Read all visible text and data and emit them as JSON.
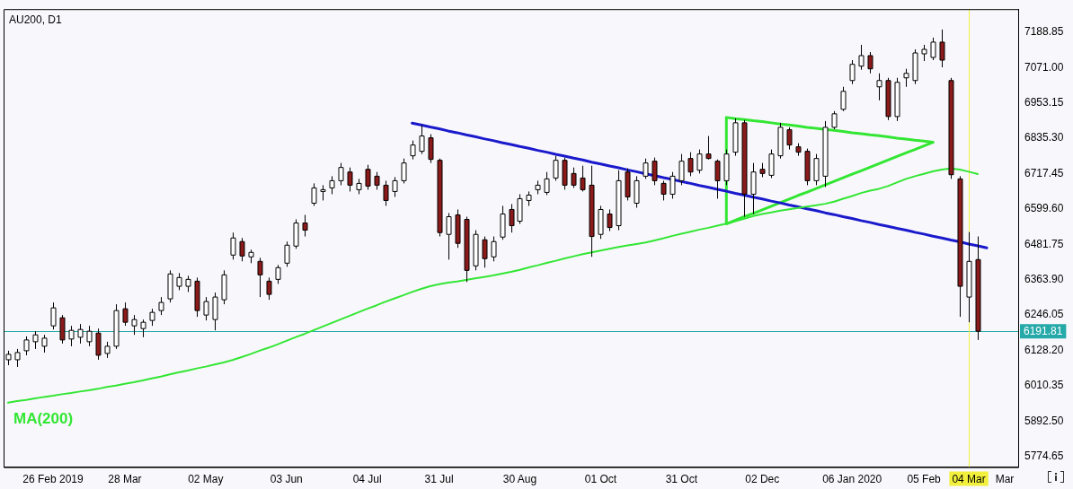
{
  "chart_data": {
    "type": "candlestick",
    "title": "AU200, D1",
    "categories": [
      null,
      null,
      null,
      null,
      null,
      "26 Feb 2019",
      null,
      null,
      null,
      null,
      null,
      null,
      null,
      "28 Mar",
      null,
      null,
      null,
      null,
      null,
      null,
      null,
      null,
      "02 May",
      null,
      null,
      null,
      null,
      null,
      null,
      null,
      null,
      "03 Jun",
      null,
      null,
      null,
      null,
      null,
      null,
      null,
      null,
      "04 Jul",
      null,
      null,
      null,
      null,
      null,
      null,
      null,
      "31 Jul",
      null,
      null,
      null,
      null,
      null,
      null,
      null,
      null,
      "30 Aug",
      null,
      null,
      null,
      null,
      null,
      null,
      null,
      null,
      "01 Oct",
      null,
      null,
      null,
      null,
      null,
      null,
      null,
      null,
      "31 Oct",
      null,
      null,
      null,
      null,
      null,
      null,
      null,
      null,
      "02 Dec",
      null,
      null,
      null,
      null,
      null,
      null,
      null,
      null,
      null,
      "06 Jan 2020",
      null,
      null,
      null,
      null,
      null,
      null,
      null,
      "05 Feb",
      null,
      null,
      null,
      null,
      "04 Mar",
      null,
      null,
      null,
      "Mar",
      null
    ],
    "ohlc": [
      [
        6097,
        6127,
        6079,
        6115
      ],
      [
        6097,
        6133,
        6073,
        6121
      ],
      [
        6127,
        6175,
        6112,
        6163
      ],
      [
        6157,
        6192,
        6133,
        6180
      ],
      [
        6142,
        6180,
        6121,
        6169
      ],
      [
        6210,
        6288,
        6198,
        6270
      ],
      [
        6237,
        6246,
        6151,
        6163
      ],
      [
        6166,
        6210,
        6142,
        6195
      ],
      [
        6172,
        6216,
        6151,
        6198
      ],
      [
        6157,
        6210,
        6142,
        6192
      ],
      [
        6186,
        6201,
        6097,
        6112
      ],
      [
        6118,
        6157,
        6103,
        6142
      ],
      [
        6142,
        6282,
        6133,
        6261
      ],
      [
        6267,
        6288,
        6210,
        6222
      ],
      [
        6210,
        6246,
        6180,
        6231
      ],
      [
        6201,
        6231,
        6172,
        6222
      ],
      [
        6228,
        6267,
        6210,
        6255
      ],
      [
        6261,
        6306,
        6246,
        6288
      ],
      [
        6300,
        6395,
        6288,
        6383
      ],
      [
        6342,
        6386,
        6329,
        6371
      ],
      [
        6342,
        6377,
        6323,
        6365
      ],
      [
        6359,
        6371,
        6240,
        6261
      ],
      [
        6246,
        6306,
        6228,
        6291
      ],
      [
        6231,
        6321,
        6195,
        6306
      ],
      [
        6297,
        6395,
        6282,
        6380
      ],
      [
        6446,
        6521,
        6431,
        6503
      ],
      [
        6491,
        6503,
        6425,
        6443
      ],
      [
        6440,
        6464,
        6419,
        6455
      ],
      [
        6425,
        6437,
        6306,
        6380
      ],
      [
        6359,
        6371,
        6297,
        6315
      ],
      [
        6365,
        6413,
        6350,
        6404
      ],
      [
        6419,
        6491,
        6407,
        6479
      ],
      [
        6476,
        6565,
        6467,
        6553
      ],
      [
        6553,
        6580,
        6508,
        6529
      ],
      [
        6619,
        6685,
        6610,
        6670
      ],
      [
        6658,
        6679,
        6628,
        6664
      ],
      [
        6670,
        6709,
        6649,
        6694
      ],
      [
        6694,
        6753,
        6679,
        6738
      ],
      [
        6723,
        6738,
        6658,
        6679
      ],
      [
        6664,
        6700,
        6649,
        6685
      ],
      [
        6732,
        6747,
        6664,
        6676
      ],
      [
        6709,
        6723,
        6664,
        6679
      ],
      [
        6679,
        6694,
        6610,
        6628
      ],
      [
        6658,
        6706,
        6640,
        6694
      ],
      [
        6694,
        6768,
        6685,
        6753
      ],
      [
        6777,
        6828,
        6765,
        6813
      ],
      [
        6792,
        6879,
        6783,
        6843
      ],
      [
        6837,
        6849,
        6753,
        6765
      ],
      [
        6762,
        6768,
        6508,
        6521
      ],
      [
        6515,
        6586,
        6431,
        6574
      ],
      [
        6580,
        6598,
        6470,
        6485
      ],
      [
        6565,
        6574,
        6356,
        6395
      ],
      [
        6410,
        6529,
        6395,
        6515
      ],
      [
        6497,
        6508,
        6404,
        6434
      ],
      [
        6440,
        6508,
        6425,
        6491
      ],
      [
        6506,
        6610,
        6497,
        6583
      ],
      [
        6598,
        6616,
        6521,
        6544
      ],
      [
        6559,
        6649,
        6550,
        6634
      ],
      [
        6628,
        6658,
        6610,
        6646
      ],
      [
        6664,
        6694,
        6649,
        6679
      ],
      [
        6655,
        6723,
        6646,
        6700
      ],
      [
        6703,
        6777,
        6694,
        6762
      ],
      [
        6762,
        6771,
        6664,
        6679
      ],
      [
        6718,
        6738,
        6670,
        6679
      ],
      [
        6703,
        6744,
        6658,
        6664
      ],
      [
        6679,
        6744,
        6440,
        6508
      ],
      [
        6515,
        6610,
        6500,
        6598
      ],
      [
        6583,
        6598,
        6526,
        6538
      ],
      [
        6544,
        6729,
        6529,
        6694
      ],
      [
        6723,
        6735,
        6628,
        6640
      ],
      [
        6619,
        6709,
        6604,
        6694
      ],
      [
        6709,
        6768,
        6700,
        6753
      ],
      [
        6759,
        6771,
        6679,
        6694
      ],
      [
        6685,
        6694,
        6628,
        6649
      ],
      [
        6649,
        6723,
        6634,
        6709
      ],
      [
        6694,
        6783,
        6679,
        6759
      ],
      [
        6768,
        6789,
        6709,
        6723
      ],
      [
        6729,
        6798,
        6718,
        6783
      ],
      [
        6783,
        6843,
        6765,
        6768
      ],
      [
        6759,
        6765,
        6634,
        6694
      ],
      [
        6694,
        6798,
        6679,
        6783
      ],
      [
        6789,
        6902,
        6777,
        6887
      ],
      [
        6887,
        6896,
        6574,
        6649
      ],
      [
        6649,
        6753,
        6583,
        6723
      ],
      [
        6732,
        6753,
        6706,
        6718
      ],
      [
        6712,
        6798,
        6703,
        6783
      ],
      [
        6777,
        6887,
        6768,
        6872
      ],
      [
        6864,
        6872,
        6798,
        6813
      ],
      [
        6807,
        6819,
        6777,
        6789
      ],
      [
        6792,
        6801,
        6679,
        6694
      ],
      [
        6694,
        6783,
        6679,
        6768
      ],
      [
        6709,
        6893,
        6673,
        6872
      ],
      [
        6872,
        6926,
        6866,
        6917
      ],
      [
        6932,
        7007,
        6926,
        6992
      ],
      [
        7028,
        7096,
        7016,
        7082
      ],
      [
        7076,
        7147,
        7064,
        7111
      ],
      [
        7111,
        7123,
        7052,
        7067
      ],
      [
        7007,
        7052,
        6962,
        7028
      ],
      [
        7028,
        7037,
        6896,
        6908
      ],
      [
        6908,
        7037,
        6893,
        7022
      ],
      [
        7037,
        7067,
        7007,
        7052
      ],
      [
        7028,
        7132,
        7016,
        7120
      ],
      [
        7117,
        7147,
        7093,
        7132
      ],
      [
        7105,
        7171,
        7096,
        7156
      ],
      [
        7156,
        7198,
        7072,
        7096
      ],
      [
        7028,
        7037,
        6700,
        6714
      ],
      [
        6700,
        6709,
        6240,
        6342
      ],
      [
        6306,
        6523,
        6222,
        6425
      ],
      [
        6431,
        6508,
        6163,
        6192
      ],
      null,
      null,
      null,
      null
    ],
    "ylim": [
      5739,
      7266
    ],
    "yticks": [
      5774.65,
      {
        "value": 5892.5,
        "label": "5892.50"
      },
      6010.35,
      {
        "value": 6128.2,
        "label": "6128.20"
      },
      6246.05,
      {
        "value": 6363.9,
        "label": "6363.90"
      },
      6481.75,
      {
        "value": 6599.6,
        "label": "6599.60"
      },
      6717.45,
      {
        "value": 6835.3,
        "label": "6835.30"
      },
      6953.15,
      {
        "value": 7071,
        "label": "7071.00"
      },
      7188.85
    ],
    "series": [
      {
        "type": "line",
        "name": "MA(200)",
        "color": "#33e633",
        "values": [
          5954,
          5959,
          5963,
          5968,
          5973,
          5977,
          5982,
          5986,
          5991,
          5995,
          6000,
          6006,
          6011,
          6017,
          6022,
          6028,
          6035,
          6041,
          6048,
          6055,
          6061,
          6068,
          6074,
          6081,
          6088,
          6096,
          6106,
          6116,
          6127,
          6137,
          6148,
          6160,
          6172,
          6183,
          6195,
          6207,
          6219,
          6231,
          6243,
          6255,
          6267,
          6278,
          6290,
          6301,
          6312,
          6323,
          6333,
          6342,
          6349,
          6354,
          6358,
          6363,
          6368,
          6373,
          6378,
          6384,
          6390,
          6397,
          6405,
          6412,
          6420,
          6427,
          6435,
          6442,
          6449,
          6455,
          6461,
          6467,
          6473,
          6478,
          6483,
          6488,
          6495,
          6502,
          6510,
          6517,
          6524,
          6531,
          6537,
          6544,
          6551,
          6559,
          6567,
          6576,
          6583,
          6588,
          6594,
          6599,
          6603,
          6608,
          6612,
          6617,
          6624,
          6634,
          6643,
          6653,
          6661,
          6667,
          6676,
          6688,
          6700,
          6709,
          6717,
          6725,
          6731,
          6735,
          6731,
          6724,
          6716,
          null,
          null,
          null,
          null
        ]
      },
      {
        "type": "line",
        "color": "#1a1acc",
        "values": [
          null,
          null,
          null,
          null,
          null,
          null,
          null,
          null,
          null,
          null,
          null,
          null,
          null,
          null,
          null,
          null,
          null,
          null,
          null,
          null,
          null,
          null,
          null,
          null,
          null,
          null,
          null,
          null,
          null,
          null,
          null,
          null,
          null,
          null,
          null,
          null,
          null,
          null,
          null,
          null,
          null,
          null,
          null,
          null,
          null,
          6886,
          6880,
          6873,
          6867,
          6860,
          6854,
          6847,
          6841,
          6834,
          6828,
          6821,
          6815,
          6808,
          6802,
          6795,
          6789,
          6782,
          6776,
          6769,
          6763,
          6756,
          6750,
          6743,
          6737,
          6730,
          6724,
          6717,
          6711,
          6704,
          6698,
          6691,
          6685,
          6678,
          6672,
          6665,
          6659,
          6652,
          6646,
          6639,
          6633,
          6626,
          6620,
          6613,
          6607,
          6600,
          6594,
          6587,
          6581,
          6574,
          6568,
          6561,
          6555,
          6548,
          6542,
          6535,
          6529,
          6522,
          6516,
          6509,
          6503,
          6496,
          6490,
          6483,
          6477,
          6470,
          null,
          null,
          null
        ]
      },
      {
        "type": "line",
        "color": "#33e633",
        "values": [
          null,
          null,
          null,
          null,
          null,
          null,
          null,
          null,
          null,
          null,
          null,
          null,
          null,
          null,
          null,
          null,
          null,
          null,
          null,
          null,
          null,
          null,
          null,
          null,
          null,
          null,
          null,
          null,
          null,
          null,
          null,
          null,
          null,
          null,
          null,
          null,
          null,
          null,
          null,
          null,
          null,
          null,
          null,
          null,
          null,
          null,
          null,
          null,
          null,
          null,
          null,
          null,
          null,
          null,
          null,
          null,
          null,
          null,
          null,
          null,
          null,
          null,
          null,
          null,
          null,
          null,
          null,
          null,
          null,
          null,
          null,
          null,
          null,
          null,
          null,
          null,
          null,
          null,
          null,
          null,
          6905,
          6901,
          6898,
          6894,
          6891,
          6887,
          6883,
          6880,
          6876,
          6872,
          6869,
          6865,
          6862,
          6858,
          6854,
          6851,
          6847,
          6844,
          6840,
          6836,
          6833,
          6829,
          6826,
          6822,
          null,
          null,
          null,
          null,
          null,
          null,
          null,
          null,
          null
        ]
      },
      {
        "type": "line",
        "color": "#33e633",
        "values": [
          null,
          null,
          null,
          null,
          null,
          null,
          null,
          null,
          null,
          null,
          null,
          null,
          null,
          null,
          null,
          null,
          null,
          null,
          null,
          null,
          null,
          null,
          null,
          null,
          null,
          null,
          null,
          null,
          null,
          null,
          null,
          null,
          null,
          null,
          null,
          null,
          null,
          null,
          null,
          null,
          null,
          null,
          null,
          null,
          null,
          null,
          null,
          null,
          null,
          null,
          null,
          null,
          null,
          null,
          null,
          null,
          null,
          null,
          null,
          null,
          null,
          null,
          null,
          null,
          null,
          null,
          null,
          null,
          null,
          null,
          null,
          null,
          null,
          null,
          null,
          null,
          null,
          null,
          null,
          null,
          6550,
          6562,
          6574,
          6585,
          6597,
          6609,
          6621,
          6633,
          6645,
          6656,
          6668,
          6680,
          6692,
          6704,
          6716,
          6727,
          6739,
          6751,
          6763,
          6775,
          6787,
          6798,
          6810,
          6822,
          null,
          null,
          null,
          null,
          null,
          null,
          null,
          null,
          null
        ]
      }
    ],
    "ref_lines": [
      {
        "axis": "y",
        "value": 6191.81,
        "label": "6191.81",
        "color": "#26a9a9"
      },
      {
        "axis": "x",
        "value": "04 Mar",
        "color": "#f2f03c"
      }
    ]
  }
}
